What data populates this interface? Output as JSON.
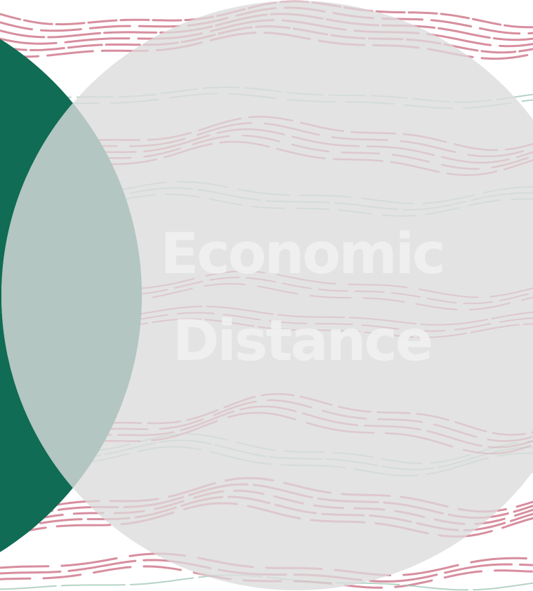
{
  "diagram": {
    "type": "venn",
    "center_label": {
      "line1": "Economic",
      "line2": "Distance"
    },
    "colors": {
      "left_circle": "#106c54",
      "overlap": "#b3c6c1",
      "center_circle": "#e3e3e3",
      "right_circle": "#dcdcdc",
      "label_text": "#f0f0f0",
      "texture_red": "#c9687e",
      "texture_green": "#9ec4b2"
    }
  }
}
